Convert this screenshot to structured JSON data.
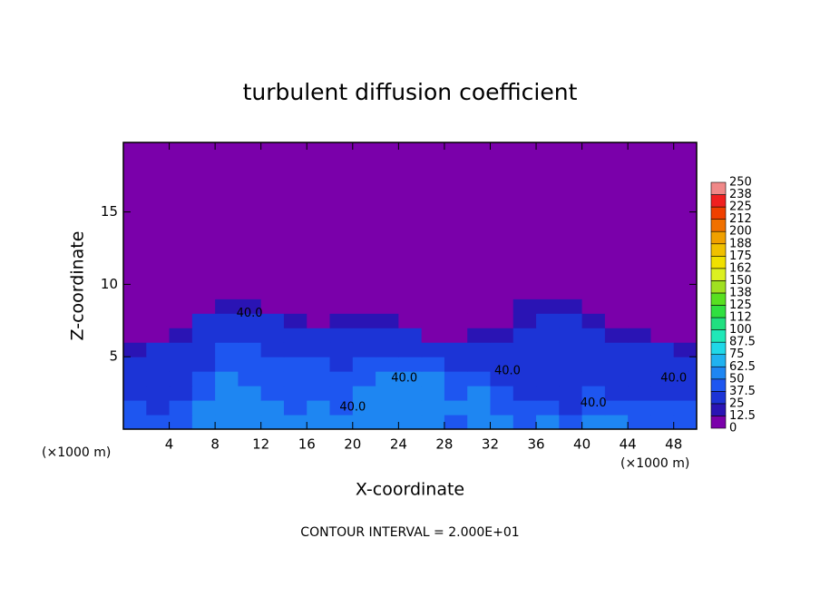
{
  "chart_data": {
    "type": "heatmap",
    "title": "turbulent diffusion coefficient",
    "x_label": "X-coordinate",
    "y_label": "Z-coordinate",
    "x_unit": "(×1000 m)",
    "y_unit": "(×1000 m)",
    "note": "CONTOUR INTERVAL = 2.000E+01",
    "xlim": [
      0,
      50
    ],
    "ylim": [
      0,
      19.8
    ],
    "xticks": [
      4,
      8,
      12,
      16,
      20,
      24,
      28,
      32,
      36,
      40,
      44,
      48
    ],
    "yticks": [
      5,
      10,
      15
    ],
    "x_edges": [
      0,
      2,
      4,
      6,
      8,
      10,
      12,
      14,
      16,
      18,
      20,
      22,
      24,
      26,
      28,
      30,
      32,
      34,
      36,
      38,
      40,
      42,
      44,
      46,
      48,
      50
    ],
    "y_edges": [
      0,
      1,
      2,
      3,
      4,
      5,
      6,
      7,
      8,
      9,
      10,
      19.8
    ],
    "z": [
      [
        45,
        40,
        45,
        50,
        55,
        55,
        50,
        55,
        60,
        60,
        62,
        60,
        55,
        50,
        45,
        55,
        50,
        45,
        50,
        40,
        55,
        50,
        40,
        45,
        45
      ],
      [
        40,
        35,
        40,
        50,
        55,
        55,
        50,
        45,
        50,
        45,
        55,
        50,
        60,
        55,
        50,
        55,
        45,
        40,
        40,
        35,
        45,
        40,
        40,
        40,
        40
      ],
      [
        35,
        30,
        35,
        45,
        55,
        50,
        45,
        40,
        45,
        40,
        50,
        55,
        55,
        60,
        45,
        50,
        40,
        35,
        35,
        30,
        40,
        35,
        35,
        35,
        30
      ],
      [
        30,
        30,
        30,
        40,
        50,
        45,
        40,
        40,
        40,
        40,
        45,
        50,
        55,
        50,
        45,
        40,
        35,
        35,
        30,
        30,
        35,
        30,
        30,
        35,
        30
      ],
      [
        30,
        30,
        30,
        35,
        45,
        45,
        40,
        40,
        40,
        35,
        40,
        45,
        45,
        40,
        35,
        35,
        30,
        30,
        30,
        30,
        30,
        30,
        30,
        35,
        30
      ],
      [
        20,
        25,
        25,
        35,
        40,
        40,
        35,
        35,
        30,
        35,
        35,
        35,
        30,
        30,
        25,
        30,
        25,
        25,
        30,
        30,
        30,
        30,
        25,
        25,
        20
      ],
      [
        0,
        0,
        20,
        30,
        35,
        35,
        30,
        30,
        25,
        30,
        30,
        25,
        25,
        0,
        0,
        20,
        15,
        25,
        25,
        30,
        25,
        20,
        20,
        0,
        0
      ],
      [
        0,
        0,
        10,
        25,
        30,
        30,
        25,
        20,
        0,
        15,
        20,
        15,
        0,
        0,
        0,
        0,
        0,
        20,
        25,
        25,
        20,
        0,
        0,
        0,
        0
      ],
      [
        0,
        0,
        0,
        10,
        15,
        20,
        10,
        0,
        0,
        0,
        0,
        0,
        0,
        0,
        0,
        0,
        0,
        15,
        20,
        15,
        0,
        0,
        0,
        0,
        0
      ],
      [
        0,
        0,
        0,
        0,
        0,
        0,
        0,
        0,
        0,
        0,
        0,
        0,
        0,
        0,
        0,
        0,
        0,
        0,
        10,
        0,
        0,
        0,
        0,
        0,
        0
      ],
      [
        0,
        0,
        0,
        0,
        0,
        0,
        0,
        0,
        0,
        0,
        0,
        0,
        0,
        0,
        0,
        0,
        0,
        0,
        0,
        0,
        0,
        0,
        0,
        0,
        0
      ]
    ],
    "contour_labels": [
      {
        "x": 11,
        "y": 8.0,
        "text": "40.0"
      },
      {
        "x": 20,
        "y": 1.5,
        "text": "40.0"
      },
      {
        "x": 24.5,
        "y": 3.5,
        "text": "40.0"
      },
      {
        "x": 33.5,
        "y": 4.0,
        "text": "40.0"
      },
      {
        "x": 41,
        "y": 1.8,
        "text": "40.0"
      },
      {
        "x": 48,
        "y": 3.5,
        "text": "40.0"
      }
    ],
    "colorbar": {
      "ticks": [
        0,
        12.5,
        25,
        37.5,
        50,
        62.5,
        75,
        87.5,
        100,
        {
          "value": 112.5,
          "label": "112"
        },
        125,
        {
          "value": 137.5,
          "label": "138"
        },
        150,
        {
          "value": 162.5,
          "label": "162"
        },
        175,
        {
          "value": 187.5,
          "label": "188"
        },
        200,
        {
          "value": 212.5,
          "label": "212"
        },
        225,
        {
          "value": 237.5,
          "label": "238"
        },
        250
      ],
      "colors": [
        "#7a00aa",
        "#2a14b4",
        "#1c34d6",
        "#1e56f0",
        "#1e86f2",
        "#20b2f0",
        "#20d8e8",
        "#20e8b8",
        "#20e080",
        "#30e040",
        "#58e020",
        "#a0e020",
        "#dcf020",
        "#f0e000",
        "#f0c000",
        "#f0a000",
        "#f07000",
        "#f04000",
        "#f02020",
        "#f08888"
      ]
    }
  }
}
